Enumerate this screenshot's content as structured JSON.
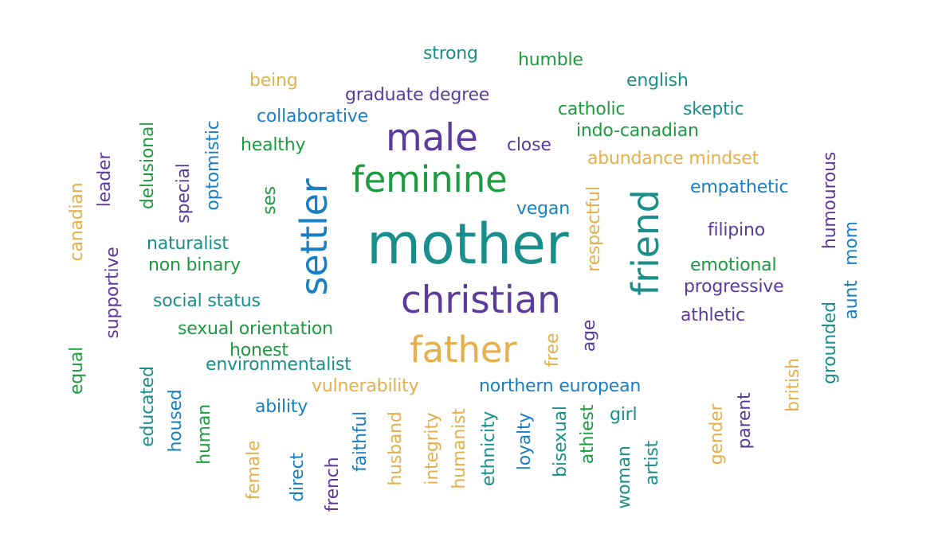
{
  "colors": {
    "teal": "#1a8e8a",
    "green": "#1e9a40",
    "purple": "#5b3c9d",
    "gold": "#e3b04b",
    "blue": "#1a7fc2"
  },
  "words": {
    "mother": "mother",
    "christian": "christian",
    "feminine": "feminine",
    "male": "male",
    "father": "father",
    "settler": "settler",
    "friend": "friend",
    "strong": "strong",
    "humble": "humble",
    "being": "being",
    "english": "english",
    "graduate_degree": "graduate degree",
    "catholic": "catholic",
    "skeptic": "skeptic",
    "collaborative": "collaborative",
    "indo_canadian": "indo-canadian",
    "healthy": "healthy",
    "close": "close",
    "abundance_mindset": "abundance mindset",
    "empathetic": "empathetic",
    "vegan": "vegan",
    "filipino": "filipino",
    "naturalist": "naturalist",
    "non_binary": "non binary",
    "emotional": "emotional",
    "progressive": "progressive",
    "social_status": "social status",
    "athletic": "athletic",
    "sexual_orientation": "sexual orientation",
    "honest": "honest",
    "environmentalist": "environmentalist",
    "vulnerability": "vulnerability",
    "northern_european": "northern european",
    "ability": "ability",
    "girl": "girl",
    "delusional": "delusional",
    "optomistic": "optomistic",
    "special": "special",
    "leader": "leader",
    "canadian": "canadian",
    "ses": "ses",
    "supportive": "supportive",
    "respectful": "respectful",
    "humourous": "humourous",
    "mom": "mom",
    "aunt": "aunt",
    "grounded": "grounded",
    "age": "age",
    "free": "free",
    "equal": "equal",
    "british": "british",
    "educated": "educated",
    "housed": "housed",
    "human": "human",
    "female": "female",
    "direct": "direct",
    "french": "french",
    "faithful": "faithful",
    "husband": "husband",
    "integrity": "integrity",
    "humanist": "humanist",
    "ethnicity": "ethnicity",
    "loyalty": "loyalty",
    "bisexual": "bisexual",
    "athiest": "athiest",
    "woman": "woman",
    "artist": "artist",
    "gender": "gender",
    "parent": "parent"
  }
}
